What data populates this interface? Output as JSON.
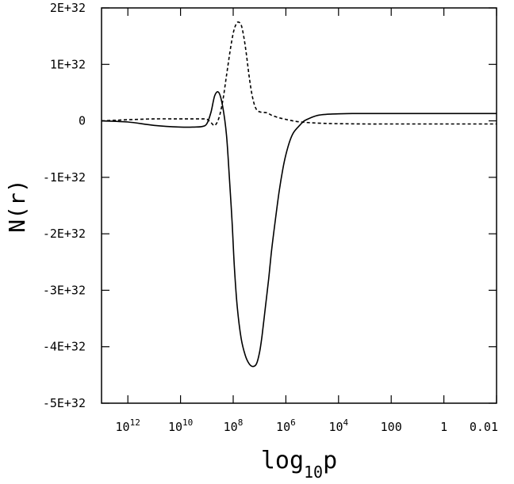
{
  "chart_data": {
    "type": "line",
    "xlabel": "log",
    "xlabel_sub": "10",
    "xlabel_tail": "p",
    "ylabel": "N(r)",
    "x_scale": "log, reversed",
    "xlim": [
      10000000000000.0,
      0.01
    ],
    "ylim": [
      -5e+32,
      2e+32
    ],
    "grid": false,
    "x_ticks": [
      {
        "x": 1000000000000.0,
        "label": "10",
        "sup": "12"
      },
      {
        "x": 10000000000.0,
        "label": "10",
        "sup": "10"
      },
      {
        "x": 100000000.0,
        "label": "10",
        "sup": "8"
      },
      {
        "x": 1000000.0,
        "label": "10",
        "sup": "6"
      },
      {
        "x": 10000.0,
        "label": "10",
        "sup": "4"
      },
      {
        "x": 100,
        "label": "100",
        "sup": ""
      },
      {
        "x": 1,
        "label": "1",
        "sup": ""
      },
      {
        "x": 0.01,
        "label": "0.01",
        "sup": ""
      }
    ],
    "y_ticks": [
      {
        "y": 2e+32,
        "label": "2E+32"
      },
      {
        "y": 1e+32,
        "label": "1E+32"
      },
      {
        "y": 0,
        "label": "0"
      },
      {
        "y": -1e+32,
        "label": "-1E+32"
      },
      {
        "y": -2e+32,
        "label": "-2E+32"
      },
      {
        "y": -3e+32,
        "label": "-3E+32"
      },
      {
        "y": -4e+32,
        "label": "-4E+32"
      },
      {
        "y": -5e+32,
        "label": "-5E+32"
      }
    ],
    "series": [
      {
        "style": "solid",
        "color": "#000000",
        "x": [
          10000000000000.0,
          1000000000000.0,
          100000000000.0,
          10000000000.0,
          3000000000.0,
          1500000000.0,
          1000000000.0,
          700000000.0,
          500000000.0,
          350000000.0,
          250000000.0,
          180000000.0,
          140000000.0,
          110000000.0,
          90000000.0,
          70000000.0,
          50000000.0,
          35000000.0,
          25000000.0,
          18000000.0,
          13000000.0,
          10000000.0,
          8000000.0,
          6000000.0,
          4500000.0,
          3500000.0,
          2500000.0,
          1800000.0,
          1300000.0,
          1000000.0,
          700000.0,
          500000.0,
          300000.0,
          200000.0,
          120000.0,
          70000.0,
          40000.0,
          20000.0,
          10000.0,
          3000.0,
          1000.0,
          100,
          10,
          1,
          0.1,
          0.01
        ],
        "y": [
          0,
          -2e+30,
          -8e+30,
          -1.1e+31,
          -1.1e+31,
          -1e+31,
          -5e+30,
          1.5e+31,
          4.5e+31,
          5e+31,
          2.5e+31,
          -2.5e+31,
          -1e+32,
          -1.8e+32,
          -2.6e+32,
          -3.3e+32,
          -3.85e+32,
          -4.15e+32,
          -4.3e+32,
          -4.35e+32,
          -4.3e+32,
          -4.1e+32,
          -3.8e+32,
          -3.3e+32,
          -2.8e+32,
          -2.3e+32,
          -1.75e+32,
          -1.25e+32,
          -8.5e+31,
          -6e+31,
          -3.5e+31,
          -2e+31,
          -8e+30,
          0,
          5e+30,
          9e+30,
          1.1e+31,
          1.2e+31,
          1.25e+31,
          1.3e+31,
          1.3e+31,
          1.3e+31,
          1.3e+31,
          1.3e+31,
          1.3e+31,
          1.3e+31
        ]
      },
      {
        "style": "dashed",
        "color": "#000000",
        "x": [
          10000000000000.0,
          1000000000000.0,
          100000000000.0,
          10000000000.0,
          3000000000.0,
          1500000000.0,
          1000000000.0,
          700000000.0,
          500000000.0,
          350000000.0,
          250000000.0,
          180000000.0,
          130000000.0,
          100000000.0,
          80000000.0,
          65000000.0,
          50000000.0,
          40000000.0,
          32000000.0,
          25000000.0,
          20000000.0,
          16000000.0,
          13000000.0,
          10000000.0,
          7000000.0,
          5000000.0,
          3500000.0,
          2000000.0,
          1200000.0,
          700000.0,
          400000.0,
          200000.0,
          100000.0,
          30000.0,
          10000.0,
          1000.0,
          100,
          10,
          1,
          0.1,
          0.01
        ],
        "y": [
          0,
          2e+30,
          3.5e+30,
          3.5e+30,
          3.5e+30,
          3.5e+30,
          3e+30,
          -3e+30,
          -8e+30,
          5e+30,
          3.5e+31,
          8e+31,
          1.25e+32,
          1.55e+32,
          1.7e+32,
          1.75e+32,
          1.7e+32,
          1.5e+32,
          1.2e+32,
          8e+31,
          5e+31,
          3e+31,
          2e+31,
          1.6e+31,
          1.5e+31,
          1.4e+31,
          1e+31,
          6e+30,
          3.5e+30,
          1e+30,
          -1e+30,
          -2.5e+30,
          -3.5e+30,
          -4.5e+30,
          -5e+30,
          -5.5e+30,
          -5.5e+30,
          -5.5e+30,
          -5.5e+30,
          -5.5e+30,
          -5.5e+30
        ]
      }
    ]
  }
}
